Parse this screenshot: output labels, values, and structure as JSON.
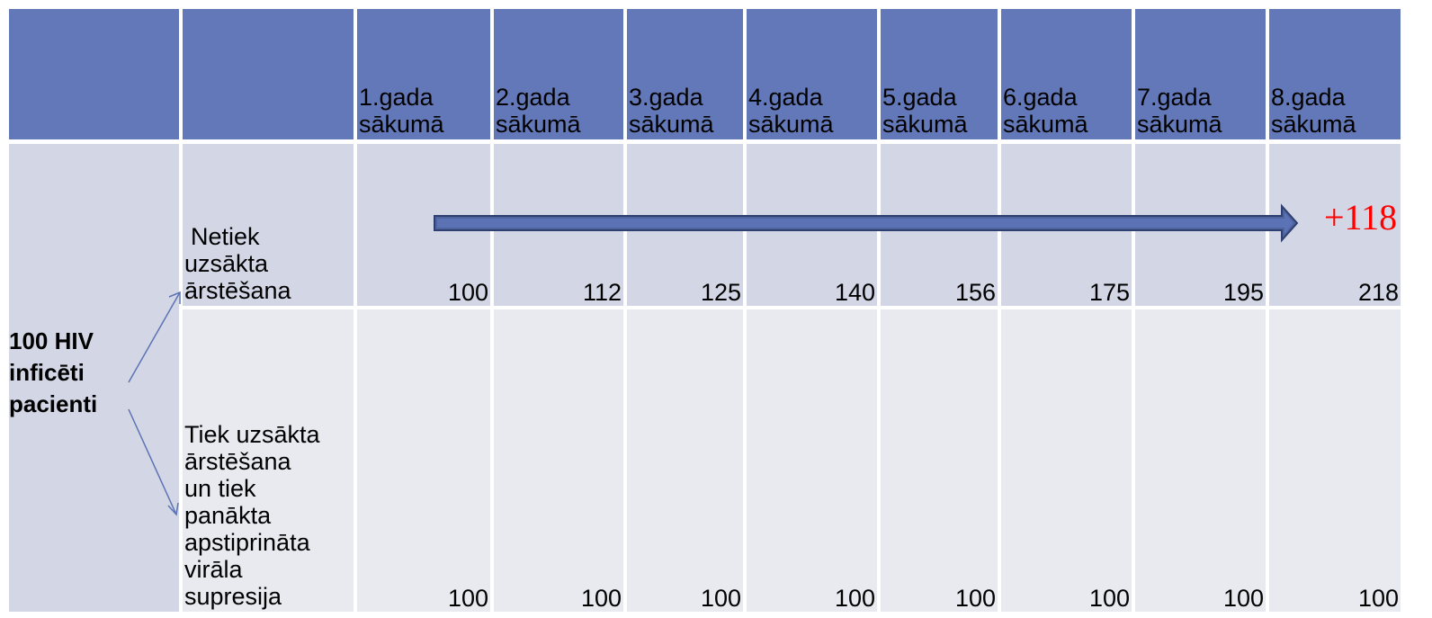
{
  "header": {
    "columns": [
      "1.gada sākumā",
      "2.gada sākumā",
      "3.gada sākumā",
      "4.gada sākumā",
      "5.gada sākumā",
      "6.gada sākumā",
      "7.gada sākumā",
      "8.gada sākumā"
    ]
  },
  "group_label": [
    "100 HIV",
    "inficēti",
    "pacienti"
  ],
  "rows": [
    {
      "label": [
        "Netiek",
        "uzsākta",
        "ārstēšana"
      ],
      "values": [
        100,
        112,
        125,
        140,
        156,
        175,
        195,
        218
      ]
    },
    {
      "label": [
        "Tiek uzsākta",
        "ārstēšana",
        "un tiek",
        "panākta",
        "apstiprināta",
        "virāla",
        "supresija"
      ],
      "values": [
        100,
        100,
        100,
        100,
        100,
        100,
        100,
        100
      ]
    }
  ],
  "annotation": "+118"
}
